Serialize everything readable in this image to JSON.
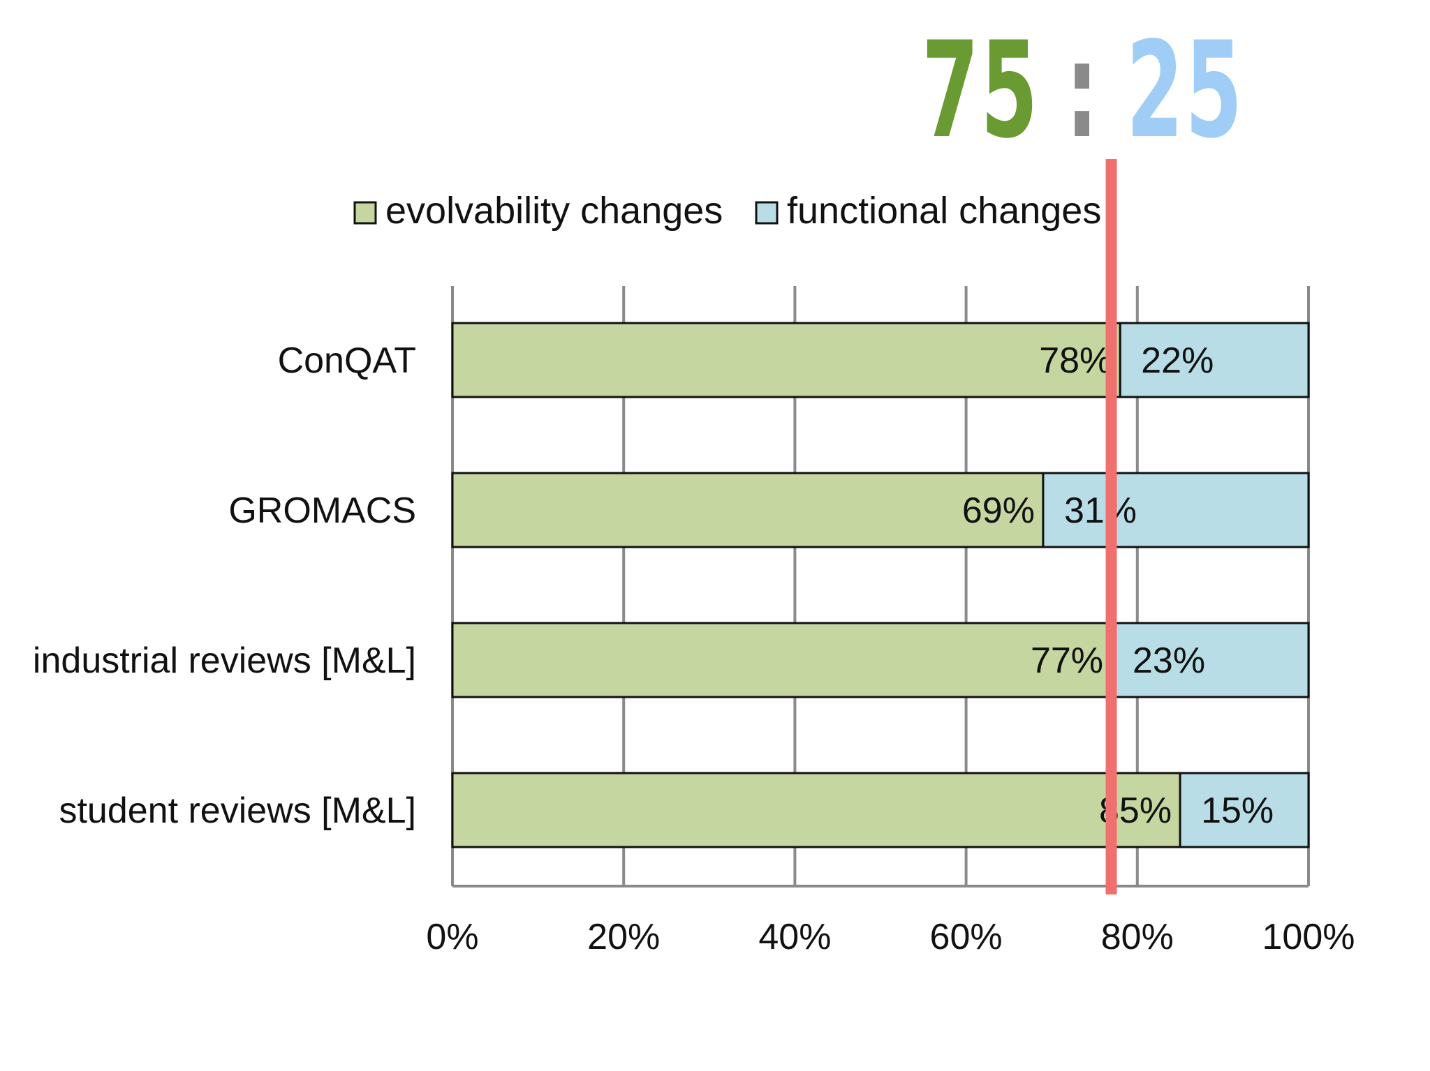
{
  "headline": {
    "left": "75",
    "separator": ":",
    "right": "25"
  },
  "colors": {
    "evolvability": "#c6d6a0",
    "functional": "#b9dde6",
    "headline_left": "#6a9a32",
    "headline_right": "#9fcdf5",
    "separator": "#8a8a8a",
    "marker": "#f07070",
    "grid": "#8a8a8a",
    "border": "#111111"
  },
  "marker": {
    "value": 75
  },
  "chart_data": {
    "type": "bar",
    "orientation": "horizontal",
    "stacked": true,
    "categories": [
      "ConQAT",
      "GROMACS",
      "industrial reviews [M&L]",
      "student reviews [M&L]"
    ],
    "series": [
      {
        "name": "evolvability changes",
        "values": [
          78,
          69,
          77,
          85
        ],
        "labels": [
          "78%",
          "69%",
          "77%",
          "85%"
        ]
      },
      {
        "name": "functional changes",
        "values": [
          22,
          31,
          23,
          15
        ],
        "labels": [
          "22%",
          "31%",
          "23%",
          "15%"
        ]
      }
    ],
    "xlim": [
      0,
      100
    ],
    "xticks": [
      0,
      20,
      40,
      60,
      80,
      100
    ],
    "xtick_labels": [
      "0%",
      "20%",
      "40%",
      "60%",
      "80%",
      "100%"
    ],
    "title": "",
    "xlabel": "",
    "ylabel": "",
    "grid": true,
    "legend_position": "top"
  }
}
